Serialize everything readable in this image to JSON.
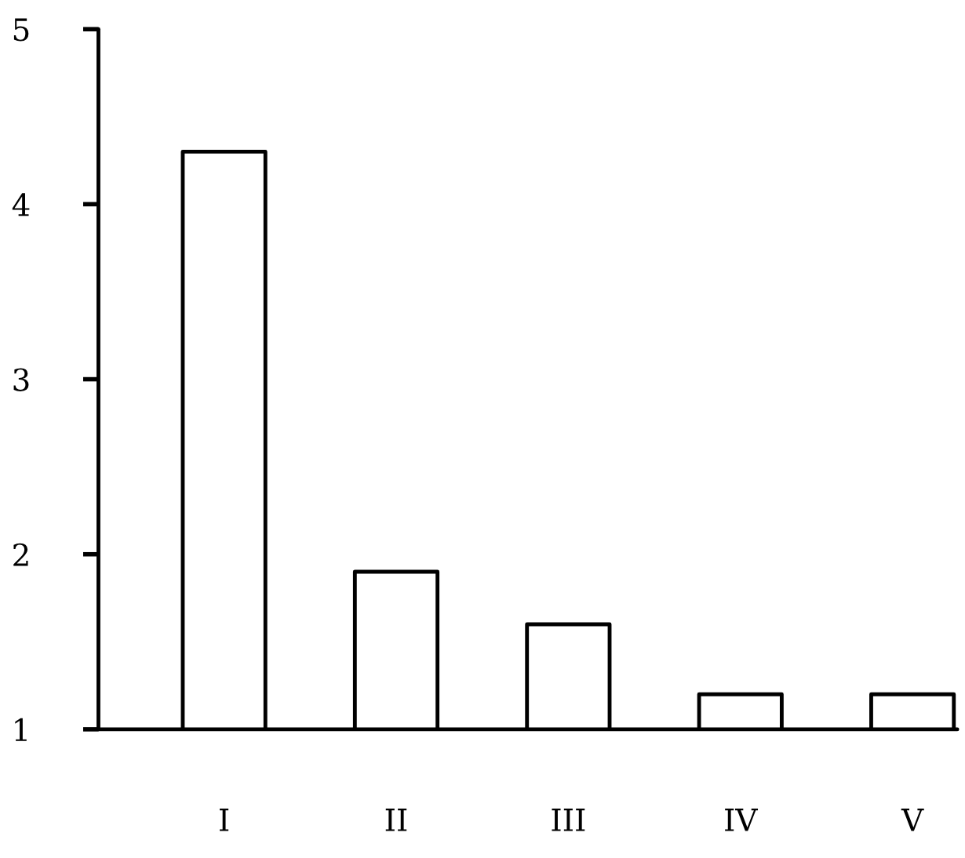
{
  "chart_data": {
    "type": "bar",
    "categories": [
      "I",
      "II",
      "III",
      "IV",
      "V"
    ],
    "values": [
      4.3,
      1.9,
      1.6,
      1.2,
      1.2
    ],
    "color": "#ffffff",
    "ylim": [
      1,
      5
    ],
    "yticks": [
      1,
      2,
      3,
      4,
      5
    ],
    "grid": false
  }
}
